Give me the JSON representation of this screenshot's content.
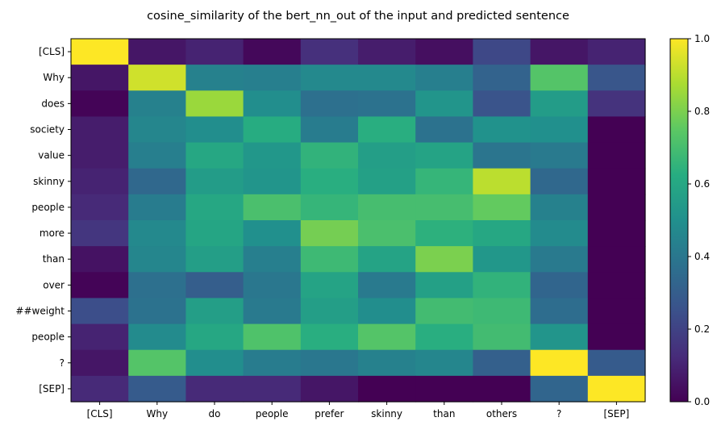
{
  "chart_data": {
    "type": "heatmap",
    "title": "cosine_similarity of the bert_nn_out of the input and predicted sentence",
    "x_labels": [
      "[CLS]",
      "Why",
      "do",
      "people",
      "prefer",
      "skinny",
      "than",
      "others",
      "?",
      "[SEP]"
    ],
    "y_labels": [
      "[CLS]",
      "Why",
      "does",
      "society",
      "value",
      "skinny",
      "people",
      "more",
      "than",
      "over",
      "##weight",
      "people",
      "?",
      "[SEP]"
    ],
    "values": [
      [
        1.0,
        0.06,
        0.1,
        0.02,
        0.14,
        0.08,
        0.04,
        0.22,
        0.06,
        0.1
      ],
      [
        0.06,
        0.93,
        0.44,
        0.43,
        0.47,
        0.47,
        0.43,
        0.32,
        0.73,
        0.27
      ],
      [
        0.01,
        0.44,
        0.85,
        0.49,
        0.37,
        0.38,
        0.52,
        0.26,
        0.55,
        0.15
      ],
      [
        0.08,
        0.46,
        0.49,
        0.62,
        0.42,
        0.63,
        0.38,
        0.51,
        0.5,
        0.0
      ],
      [
        0.08,
        0.43,
        0.6,
        0.53,
        0.65,
        0.56,
        0.58,
        0.39,
        0.41,
        0.0
      ],
      [
        0.1,
        0.34,
        0.55,
        0.52,
        0.63,
        0.57,
        0.66,
        0.9,
        0.34,
        0.0
      ],
      [
        0.12,
        0.42,
        0.6,
        0.71,
        0.66,
        0.7,
        0.7,
        0.76,
        0.44,
        0.0
      ],
      [
        0.16,
        0.47,
        0.59,
        0.5,
        0.79,
        0.71,
        0.64,
        0.6,
        0.48,
        0.0
      ],
      [
        0.05,
        0.46,
        0.56,
        0.43,
        0.68,
        0.58,
        0.8,
        0.53,
        0.41,
        0.0
      ],
      [
        0.01,
        0.37,
        0.3,
        0.4,
        0.58,
        0.41,
        0.57,
        0.65,
        0.33,
        0.0
      ],
      [
        0.24,
        0.38,
        0.56,
        0.41,
        0.56,
        0.49,
        0.69,
        0.68,
        0.36,
        0.0
      ],
      [
        0.1,
        0.48,
        0.6,
        0.72,
        0.63,
        0.73,
        0.63,
        0.69,
        0.52,
        0.0
      ],
      [
        0.06,
        0.73,
        0.49,
        0.42,
        0.4,
        0.44,
        0.46,
        0.31,
        1.0,
        0.29
      ],
      [
        0.12,
        0.29,
        0.12,
        0.12,
        0.06,
        0.0,
        0.0,
        0.0,
        0.33,
        1.0
      ]
    ],
    "colorbar": {
      "min": 0.0,
      "max": 1.0,
      "ticks": [
        "0.0",
        "0.2",
        "0.4",
        "0.6",
        "0.8",
        "1.0"
      ],
      "colormap": "viridis"
    },
    "grid": false
  }
}
